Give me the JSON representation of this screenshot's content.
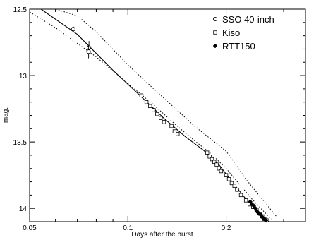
{
  "chart_data": {
    "type": "scatter",
    "xlabel": "Days after the burst",
    "ylabel": "mag.",
    "x_scale": "log",
    "y_inverted": true,
    "xlim": [
      0.05,
      0.35
    ],
    "ylim": [
      12.5,
      14.1
    ],
    "grid": false,
    "legend_position": "top-right",
    "x_ticks": [
      {
        "value": 0.05,
        "label": "0.05"
      },
      {
        "value": 0.1,
        "label": "0.1"
      },
      {
        "value": 0.2,
        "label": "0.2"
      }
    ],
    "y_ticks": [
      {
        "value": 12.5,
        "label": "12.5"
      },
      {
        "value": 13,
        "label": "13"
      },
      {
        "value": 13.5,
        "label": "13.5"
      },
      {
        "value": 14,
        "label": "14"
      }
    ],
    "series": [
      {
        "name": "SSO 40-inch",
        "marker": "circle",
        "points": [
          [
            0.068,
            12.65
          ],
          [
            0.076,
            12.79
          ],
          [
            0.0758,
            12.82
          ]
        ],
        "errors": [
          0.02,
          0.05,
          0.05
        ]
      },
      {
        "name": "Kiso",
        "marker": "square",
        "points": [
          [
            0.11,
            13.15
          ],
          [
            0.114,
            13.2
          ],
          [
            0.117,
            13.23
          ],
          [
            0.12,
            13.26
          ],
          [
            0.123,
            13.29
          ],
          [
            0.126,
            13.32
          ],
          [
            0.129,
            13.35
          ],
          [
            0.136,
            13.38
          ],
          [
            0.139,
            13.42
          ],
          [
            0.142,
            13.44
          ],
          [
            0.175,
            13.58
          ],
          [
            0.178,
            13.61
          ],
          [
            0.181,
            13.63
          ],
          [
            0.184,
            13.65
          ],
          [
            0.187,
            13.67
          ],
          [
            0.19,
            13.7
          ],
          [
            0.193,
            13.72
          ],
          [
            0.2,
            13.75
          ],
          [
            0.204,
            13.78
          ],
          [
            0.208,
            13.81
          ],
          [
            0.212,
            13.83
          ],
          [
            0.216,
            13.86
          ],
          [
            0.222,
            13.9
          ],
          [
            0.23,
            13.94
          ],
          [
            0.236,
            13.97
          ],
          [
            0.242,
            13.99
          ],
          [
            0.248,
            14.01
          ],
          [
            0.254,
            14.04
          ],
          [
            0.258,
            14.06
          ],
          [
            0.262,
            14.08
          ],
          [
            0.266,
            14.09
          ]
        ]
      },
      {
        "name": "RTT150",
        "marker": "diamond",
        "points": [
          [
            0.237,
            13.95
          ],
          [
            0.24,
            13.97
          ],
          [
            0.243,
            13.98
          ],
          [
            0.246,
            14.0
          ],
          [
            0.248,
            14.02
          ],
          [
            0.25,
            14.03
          ],
          [
            0.253,
            14.04
          ],
          [
            0.256,
            14.05
          ],
          [
            0.259,
            14.07
          ],
          [
            0.262,
            14.08
          ],
          [
            0.265,
            14.09
          ]
        ]
      }
    ],
    "fit_line": [
      [
        0.0542,
        12.5
      ],
      [
        0.07,
        12.69
      ],
      [
        0.09,
        12.96
      ],
      [
        0.11,
        13.16
      ],
      [
        0.13,
        13.33
      ],
      [
        0.15,
        13.46
      ],
      [
        0.17,
        13.56
      ],
      [
        0.19,
        13.67
      ],
      [
        0.21,
        13.81
      ],
      [
        0.23,
        13.93
      ],
      [
        0.25,
        14.02
      ],
      [
        0.27,
        14.1
      ]
    ],
    "upper_bound": [
      [
        0.0484,
        12.5
      ],
      [
        0.06,
        12.64
      ],
      [
        0.08,
        12.86
      ],
      [
        0.1,
        13.06
      ],
      [
        0.12,
        13.22
      ],
      [
        0.14,
        13.37
      ],
      [
        0.16,
        13.49
      ],
      [
        0.18,
        13.59
      ],
      [
        0.2,
        13.7
      ],
      [
        0.22,
        13.82
      ],
      [
        0.24,
        13.93
      ],
      [
        0.26,
        14.02
      ],
      [
        0.275,
        14.08
      ]
    ],
    "lower_bound": [
      [
        0.0601,
        12.5
      ],
      [
        0.07,
        12.55
      ],
      [
        0.08,
        12.67
      ],
      [
        0.1,
        12.92
      ],
      [
        0.12,
        13.1
      ],
      [
        0.14,
        13.25
      ],
      [
        0.16,
        13.38
      ],
      [
        0.18,
        13.48
      ],
      [
        0.2,
        13.57
      ],
      [
        0.21,
        13.64
      ],
      [
        0.23,
        13.78
      ],
      [
        0.25,
        13.89
      ],
      [
        0.27,
        13.99
      ],
      [
        0.285,
        14.06
      ]
    ]
  }
}
